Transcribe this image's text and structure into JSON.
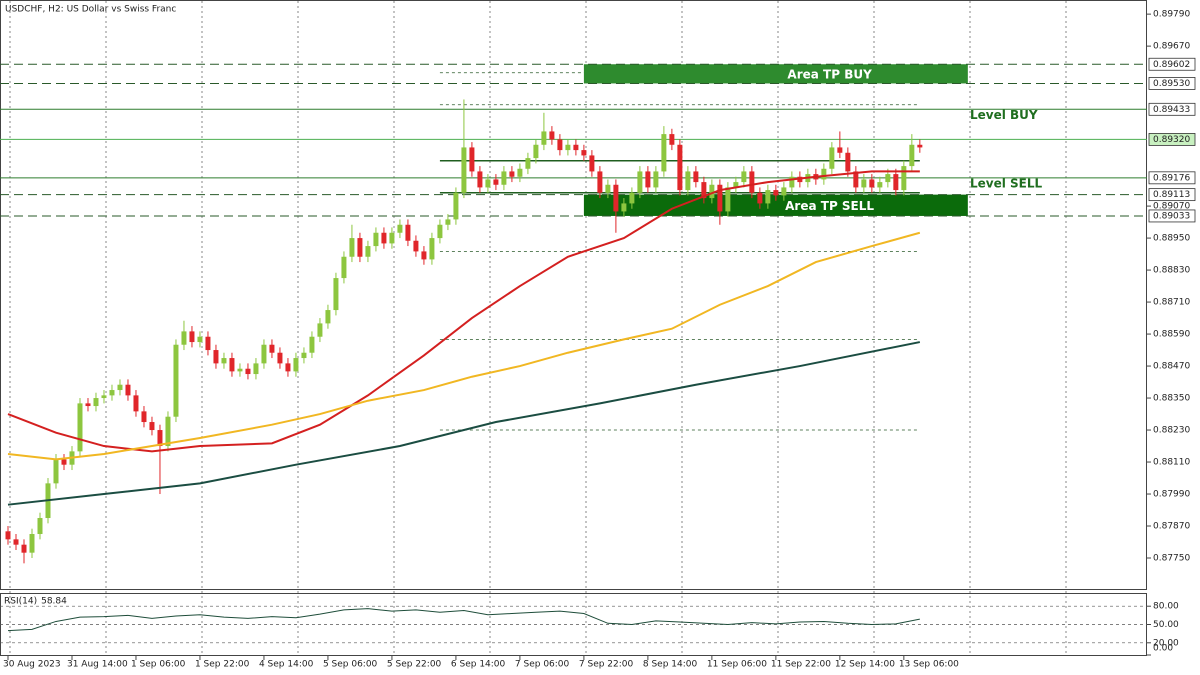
{
  "chart_data": {
    "type": "candlestick",
    "title": "USDCHF, H2:  US Dollar vs Swiss Franc",
    "bull_color": "#8dc63f",
    "bear_color": "#e0262a",
    "xlim": [
      -1,
      142.4
    ],
    "ylim": [
      0.8763,
      0.89843
    ],
    "xticks": [
      {
        "value": 0,
        "label": "30 Aug 2023"
      },
      {
        "value": 8,
        "label": "31 Aug 14:00"
      },
      {
        "value": 16,
        "label": "1 Sep 06:00"
      },
      {
        "value": 24,
        "label": "1 Sep 22:00"
      },
      {
        "value": 32,
        "label": "4 Sep 14:00"
      },
      {
        "value": 40,
        "label": "5 Sep 06:00"
      },
      {
        "value": 48,
        "label": "5 Sep 22:00"
      },
      {
        "value": 56,
        "label": "6 Sep 14:00"
      },
      {
        "value": 64,
        "label": "7 Sep 06:00"
      },
      {
        "value": 72,
        "label": "7 Sep 22:00"
      },
      {
        "value": 80,
        "label": "8 Sep 14:00"
      },
      {
        "value": 88,
        "label": "11 Sep 06:00"
      },
      {
        "value": 96,
        "label": "11 Sep 22:00"
      },
      {
        "value": 104,
        "label": "12 Sep 14:00"
      },
      {
        "value": 112,
        "label": "13 Sep 06:00"
      }
    ],
    "yticks": [
      {
        "value": 0.8979,
        "label": "0.89790"
      },
      {
        "value": 0.8967,
        "label": "0.89670"
      },
      {
        "value": 0.8907,
        "label": "0.89070"
      },
      {
        "value": 0.8895,
        "label": "0.88950"
      },
      {
        "value": 0.8883,
        "label": "0.88830"
      },
      {
        "value": 0.8871,
        "label": "0.88710"
      },
      {
        "value": 0.8859,
        "label": "0.88590"
      },
      {
        "value": 0.8847,
        "label": "0.88470"
      },
      {
        "value": 0.8835,
        "label": "0.88350"
      },
      {
        "value": 0.8823,
        "label": "0.88230"
      },
      {
        "value": 0.8811,
        "label": "0.88110"
      },
      {
        "value": 0.8799,
        "label": "0.87990"
      },
      {
        "value": 0.8787,
        "label": "0.87870"
      },
      {
        "value": 0.8775,
        "label": "0.87750"
      }
    ],
    "candles": [
      [
        0.8785,
        0.8787,
        0.878,
        0.8782
      ],
      [
        0.8782,
        0.8784,
        0.8778,
        0.878
      ],
      [
        0.878,
        0.8782,
        0.8773,
        0.8777
      ],
      [
        0.8777,
        0.8786,
        0.8775,
        0.8784
      ],
      [
        0.8784,
        0.8792,
        0.8782,
        0.879
      ],
      [
        0.879,
        0.8805,
        0.8788,
        0.8803
      ],
      [
        0.8803,
        0.8814,
        0.8801,
        0.8812
      ],
      [
        0.8812,
        0.8814,
        0.8808,
        0.881
      ],
      [
        0.881,
        0.8817,
        0.8808,
        0.8815
      ],
      [
        0.8815,
        0.8835,
        0.8813,
        0.8833
      ],
      [
        0.8833,
        0.8835,
        0.883,
        0.8832
      ],
      [
        0.8832,
        0.8837,
        0.883,
        0.8835
      ],
      [
        0.8835,
        0.8838,
        0.8833,
        0.8836
      ],
      [
        0.8836,
        0.884,
        0.8834,
        0.8838
      ],
      [
        0.8838,
        0.8842,
        0.8836,
        0.884
      ],
      [
        0.884,
        0.8842,
        0.8834,
        0.8836
      ],
      [
        0.8836,
        0.8838,
        0.8828,
        0.883
      ],
      [
        0.883,
        0.8832,
        0.8824,
        0.8826
      ],
      [
        0.8826,
        0.8828,
        0.8821,
        0.8823
      ],
      [
        0.8823,
        0.8825,
        0.8799,
        0.8817
      ],
      [
        0.8817,
        0.883,
        0.8815,
        0.8828
      ],
      [
        0.8828,
        0.8857,
        0.8826,
        0.8855
      ],
      [
        0.8855,
        0.8864,
        0.8853,
        0.886
      ],
      [
        0.886,
        0.8862,
        0.8854,
        0.8856
      ],
      [
        0.8856,
        0.886,
        0.8854,
        0.8858
      ],
      [
        0.8858,
        0.886,
        0.8851,
        0.8853
      ],
      [
        0.8853,
        0.8855,
        0.8846,
        0.8848
      ],
      [
        0.8848,
        0.8852,
        0.8846,
        0.885
      ],
      [
        0.885,
        0.8852,
        0.8843,
        0.8845
      ],
      [
        0.8845,
        0.8848,
        0.8843,
        0.8846
      ],
      [
        0.8846,
        0.8848,
        0.8842,
        0.8844
      ],
      [
        0.8844,
        0.885,
        0.8842,
        0.8848
      ],
      [
        0.8848,
        0.8857,
        0.8846,
        0.8855
      ],
      [
        0.8855,
        0.8857,
        0.885,
        0.8852
      ],
      [
        0.8852,
        0.8854,
        0.8846,
        0.8848
      ],
      [
        0.8848,
        0.885,
        0.8843,
        0.8845
      ],
      [
        0.8845,
        0.8852,
        0.8843,
        0.885
      ],
      [
        0.885,
        0.8854,
        0.8848,
        0.8852
      ],
      [
        0.8852,
        0.886,
        0.885,
        0.8858
      ],
      [
        0.8858,
        0.8865,
        0.8856,
        0.8863
      ],
      [
        0.8863,
        0.887,
        0.8861,
        0.8868
      ],
      [
        0.8868,
        0.8882,
        0.8866,
        0.888
      ],
      [
        0.888,
        0.889,
        0.8878,
        0.8888
      ],
      [
        0.8888,
        0.89,
        0.8886,
        0.8895
      ],
      [
        0.8895,
        0.8897,
        0.8886,
        0.8888
      ],
      [
        0.8888,
        0.8894,
        0.8886,
        0.8892
      ],
      [
        0.8892,
        0.8899,
        0.889,
        0.8897
      ],
      [
        0.8897,
        0.8899,
        0.8891,
        0.8893
      ],
      [
        0.8893,
        0.8899,
        0.8891,
        0.8897
      ],
      [
        0.8897,
        0.8902,
        0.8895,
        0.89
      ],
      [
        0.89,
        0.8902,
        0.8892,
        0.8894
      ],
      [
        0.8894,
        0.8896,
        0.8888,
        0.889
      ],
      [
        0.889,
        0.8892,
        0.8885,
        0.8887
      ],
      [
        0.8887,
        0.8897,
        0.8885,
        0.8895
      ],
      [
        0.8895,
        0.8902,
        0.8893,
        0.89
      ],
      [
        0.89,
        0.8904,
        0.8898,
        0.8902
      ],
      [
        0.8902,
        0.8914,
        0.89,
        0.8912
      ],
      [
        0.8912,
        0.8947,
        0.891,
        0.8929
      ],
      [
        0.8929,
        0.8931,
        0.8918,
        0.892
      ],
      [
        0.892,
        0.8922,
        0.8912,
        0.8914
      ],
      [
        0.8914,
        0.8919,
        0.8912,
        0.8917
      ],
      [
        0.8917,
        0.8919,
        0.8913,
        0.8915
      ],
      [
        0.8915,
        0.8922,
        0.8913,
        0.892
      ],
      [
        0.892,
        0.8922,
        0.8916,
        0.8918
      ],
      [
        0.8918,
        0.8923,
        0.8916,
        0.8921
      ],
      [
        0.8921,
        0.8927,
        0.8919,
        0.8925
      ],
      [
        0.8925,
        0.8932,
        0.8923,
        0.893
      ],
      [
        0.893,
        0.8942,
        0.8928,
        0.8935
      ],
      [
        0.8935,
        0.8937,
        0.893,
        0.8932
      ],
      [
        0.8932,
        0.8934,
        0.8926,
        0.8928
      ],
      [
        0.8928,
        0.8932,
        0.8926,
        0.893
      ],
      [
        0.893,
        0.8932,
        0.8926,
        0.8928
      ],
      [
        0.8928,
        0.893,
        0.8924,
        0.8926
      ],
      [
        0.8926,
        0.8928,
        0.8918,
        0.892
      ],
      [
        0.892,
        0.8922,
        0.891,
        0.8912
      ],
      [
        0.8912,
        0.8917,
        0.891,
        0.8915
      ],
      [
        0.8915,
        0.8917,
        0.8897,
        0.8905
      ],
      [
        0.8905,
        0.891,
        0.8903,
        0.8908
      ],
      [
        0.8908,
        0.8914,
        0.8906,
        0.8912
      ],
      [
        0.8912,
        0.8922,
        0.891,
        0.892
      ],
      [
        0.892,
        0.8922,
        0.8912,
        0.8914
      ],
      [
        0.8914,
        0.8922,
        0.8912,
        0.892
      ],
      [
        0.892,
        0.8937,
        0.8918,
        0.8934
      ],
      [
        0.8934,
        0.8936,
        0.8928,
        0.893
      ],
      [
        0.893,
        0.8932,
        0.8911,
        0.8913
      ],
      [
        0.8913,
        0.8922,
        0.8911,
        0.892
      ],
      [
        0.892,
        0.8922,
        0.8914,
        0.8916
      ],
      [
        0.8916,
        0.8918,
        0.8908,
        0.891
      ],
      [
        0.891,
        0.8917,
        0.8908,
        0.8915
      ],
      [
        0.8915,
        0.8917,
        0.89,
        0.8905
      ],
      [
        0.8905,
        0.8916,
        0.8903,
        0.8914
      ],
      [
        0.8914,
        0.8918,
        0.8912,
        0.8916
      ],
      [
        0.8916,
        0.8922,
        0.8914,
        0.892
      ],
      [
        0.892,
        0.8922,
        0.891,
        0.8912
      ],
      [
        0.8912,
        0.8914,
        0.8906,
        0.8908
      ],
      [
        0.8908,
        0.8915,
        0.8906,
        0.8913
      ],
      [
        0.8913,
        0.8915,
        0.8909,
        0.8911
      ],
      [
        0.8911,
        0.8916,
        0.8909,
        0.8914
      ],
      [
        0.8914,
        0.892,
        0.8912,
        0.8918
      ],
      [
        0.8918,
        0.892,
        0.8914,
        0.8916
      ],
      [
        0.8916,
        0.8921,
        0.8914,
        0.8919
      ],
      [
        0.8919,
        0.8921,
        0.8915,
        0.8917
      ],
      [
        0.8917,
        0.8923,
        0.8915,
        0.8921
      ],
      [
        0.8921,
        0.8931,
        0.8919,
        0.8929
      ],
      [
        0.8929,
        0.8935,
        0.8925,
        0.8927
      ],
      [
        0.8927,
        0.8929,
        0.8918,
        0.892
      ],
      [
        0.892,
        0.8922,
        0.8912,
        0.8914
      ],
      [
        0.8914,
        0.8919,
        0.8912,
        0.8917
      ],
      [
        0.8917,
        0.8919,
        0.8912,
        0.8914
      ],
      [
        0.8914,
        0.8918,
        0.8912,
        0.8916
      ],
      [
        0.8916,
        0.8921,
        0.8914,
        0.8919
      ],
      [
        0.8919,
        0.8921,
        0.8911,
        0.8913
      ],
      [
        0.8913,
        0.8924,
        0.8911,
        0.8922
      ],
      [
        0.8922,
        0.8934,
        0.892,
        0.893
      ],
      [
        0.893,
        0.8932,
        0.8927,
        0.8929
      ]
    ],
    "lines": [
      {
        "color": "#d42020",
        "x": [
          0,
          6,
          12,
          18,
          24,
          33,
          39,
          45,
          52,
          58,
          64,
          70,
          77,
          83,
          89,
          95,
          101,
          108,
          114
        ],
        "values": [
          0.8829,
          0.8822,
          0.8817,
          0.8815,
          0.8817,
          0.8818,
          0.8825,
          0.8836,
          0.8851,
          0.8865,
          0.8877,
          0.8888,
          0.8895,
          0.8906,
          0.8913,
          0.8916,
          0.8918,
          0.892,
          0.892
        ]
      },
      {
        "color": "#f1b722",
        "x": [
          0,
          6,
          12,
          18,
          24,
          33,
          39,
          45,
          52,
          58,
          64,
          70,
          77,
          83,
          89,
          95,
          101,
          108,
          114
        ],
        "values": [
          0.8814,
          0.8812,
          0.8814,
          0.8817,
          0.882,
          0.8825,
          0.8829,
          0.8834,
          0.8838,
          0.8843,
          0.8847,
          0.8852,
          0.8857,
          0.8861,
          0.887,
          0.8877,
          0.8886,
          0.8892,
          0.8897
        ]
      },
      {
        "color": "#1b4d42",
        "x": [
          0,
          12,
          24,
          36,
          49,
          61,
          74,
          86,
          99,
          114
        ],
        "values": [
          0.8795,
          0.8799,
          0.8803,
          0.881,
          0.8817,
          0.8826,
          0.8833,
          0.884,
          0.8847,
          0.8856
        ]
      }
    ],
    "levels": [
      {
        "value": 0.89602,
        "label": "0.89602",
        "style": "dashed",
        "color": "#2a5a2a"
      },
      {
        "value": 0.8953,
        "label": "0.89530",
        "style": "dashed",
        "color": "#2a5a2a"
      },
      {
        "value": 0.89433,
        "label": "0.89433",
        "style": "solid",
        "color": "#2f7d2f",
        "name": "Level BUY"
      },
      {
        "value": 0.8932,
        "label": "0.89320",
        "style": "solid",
        "color": "#4caf50",
        "box": "#c8f0c0"
      },
      {
        "value": 0.89176,
        "label": "0.89176",
        "style": "solid",
        "color": "#2f7d2f",
        "name": "Level SELL"
      },
      {
        "value": 0.89113,
        "label": "0.89113",
        "style": "dashed",
        "color": "#2a5a2a"
      },
      {
        "value": 0.89033,
        "label": "0.89033",
        "style": "dashed",
        "color": "#2a5a2a"
      }
    ],
    "areas": [
      {
        "name": "Area TP BUY",
        "from": 0.89602,
        "to": 0.8953,
        "start": 72,
        "end": 120,
        "color": "#2e8b2e"
      },
      {
        "name": "Area TP SELL",
        "from": 0.89113,
        "to": 0.89033,
        "start": 72,
        "end": 120,
        "color": "#0b6b0b"
      }
    ],
    "trend_levels": [
      {
        "value": 0.8957,
        "start": 54,
        "end": 114,
        "style": "dotted"
      },
      {
        "value": 0.8945,
        "start": 54,
        "end": 114,
        "style": "dotted"
      },
      {
        "value": 0.8924,
        "start": 54,
        "end": 114,
        "style": "solid"
      },
      {
        "value": 0.8912,
        "start": 54,
        "end": 114,
        "style": "solid"
      },
      {
        "value": 0.889,
        "start": 54,
        "end": 114,
        "style": "dotted"
      },
      {
        "value": 0.8857,
        "start": 54,
        "end": 114,
        "style": "dotted"
      },
      {
        "value": 0.8823,
        "start": 54,
        "end": 114,
        "style": "dotted"
      }
    ],
    "rsi": {
      "name": "RSI(14)",
      "color": "#1e4d3a",
      "x": [
        0,
        3,
        6,
        9,
        12,
        15,
        18,
        21,
        24,
        27,
        30,
        33,
        36,
        39,
        42,
        45,
        48,
        51,
        54,
        57,
        60,
        63,
        66,
        69,
        72,
        75,
        78,
        81,
        84,
        87,
        90,
        93,
        96,
        99,
        102,
        105,
        108,
        111,
        114
      ],
      "values": [
        40,
        42,
        55,
        62,
        63,
        65,
        60,
        64,
        66,
        62,
        60,
        63,
        61,
        67,
        74,
        76,
        72,
        74,
        70,
        73,
        66,
        68,
        70,
        72,
        68,
        52,
        50,
        56,
        54,
        52,
        50,
        53,
        51,
        54,
        55,
        52,
        50,
        51,
        58.84
      ],
      "ylim": [
        0,
        100
      ],
      "yticks": [
        {
          "value": 80,
          "label": "80.00"
        },
        {
          "value": 50,
          "label": "50.00"
        },
        {
          "value": 20,
          "label": "20.00"
        },
        {
          "value": 0,
          "label": "0.00"
        }
      ],
      "levels": [
        80,
        50,
        20
      ]
    }
  }
}
